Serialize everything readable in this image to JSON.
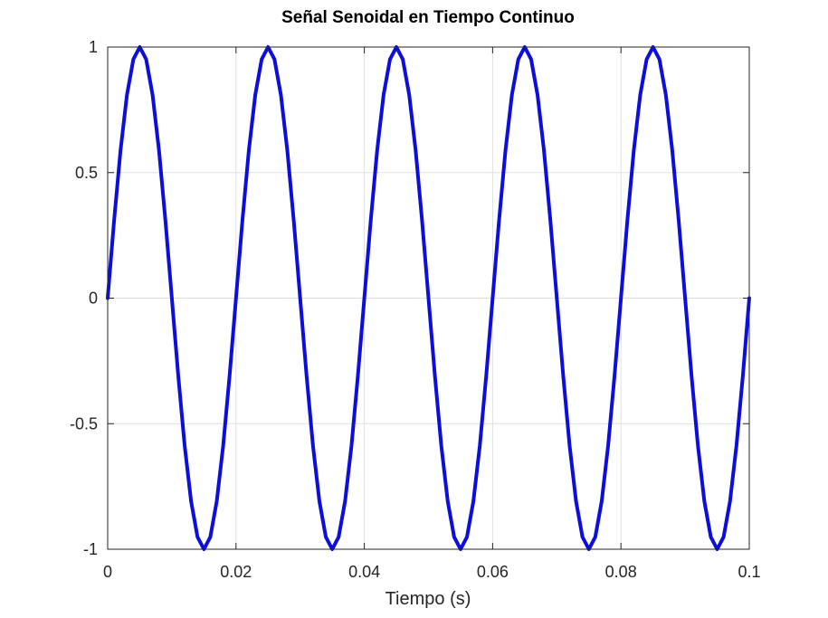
{
  "chart_data": {
    "type": "line",
    "title": "Señal Senoidal en Tiempo Continuo",
    "xlabel": "Tiempo (s)",
    "ylabel": "",
    "xlim": [
      0,
      0.1
    ],
    "ylim": [
      -1,
      1
    ],
    "x_ticks": [
      0,
      0.02,
      0.04,
      0.06,
      0.08,
      0.1
    ],
    "x_tick_labels": [
      "0",
      "0.02",
      "0.04",
      "0.06",
      "0.08",
      "0.1"
    ],
    "y_ticks": [
      -1,
      -0.5,
      0,
      0.5,
      1
    ],
    "y_tick_labels": [
      "-1",
      "-0.5",
      "0",
      "0.5",
      "1"
    ],
    "grid": true,
    "series": [
      {
        "color": "#0d0ddc",
        "x": [
          0,
          0.001,
          0.002,
          0.003,
          0.004,
          0.005,
          0.006,
          0.007,
          0.008,
          0.009,
          0.01,
          0.011,
          0.012,
          0.013,
          0.014,
          0.015,
          0.016,
          0.017,
          0.018,
          0.019,
          0.02,
          0.021,
          0.022,
          0.023,
          0.024,
          0.025,
          0.026,
          0.027,
          0.028,
          0.029,
          0.03,
          0.031,
          0.032,
          0.033,
          0.034,
          0.035,
          0.036,
          0.037,
          0.038,
          0.039,
          0.04,
          0.041,
          0.042,
          0.043,
          0.044,
          0.045,
          0.046,
          0.047,
          0.048,
          0.049,
          0.05,
          0.051,
          0.052,
          0.053,
          0.054,
          0.055,
          0.056,
          0.057,
          0.058,
          0.059,
          0.06,
          0.061,
          0.062,
          0.063,
          0.064,
          0.065,
          0.066,
          0.067,
          0.068,
          0.069,
          0.07,
          0.071,
          0.072,
          0.073,
          0.074,
          0.075,
          0.076,
          0.077,
          0.078,
          0.079,
          0.08,
          0.081,
          0.082,
          0.083,
          0.084,
          0.085,
          0.086,
          0.087,
          0.088,
          0.089,
          0.09,
          0.091,
          0.092,
          0.093,
          0.094,
          0.095,
          0.096,
          0.097,
          0.098,
          0.099,
          0.1
        ],
        "y": [
          0,
          0.309,
          0.588,
          0.809,
          0.951,
          1,
          0.951,
          0.809,
          0.588,
          0.309,
          0,
          -0.309,
          -0.588,
          -0.809,
          -0.951,
          -1,
          -0.951,
          -0.809,
          -0.588,
          -0.309,
          0,
          0.309,
          0.588,
          0.809,
          0.951,
          1,
          0.951,
          0.809,
          0.588,
          0.309,
          0,
          -0.309,
          -0.588,
          -0.809,
          -0.951,
          -1,
          -0.951,
          -0.809,
          -0.588,
          -0.309,
          0,
          0.309,
          0.588,
          0.809,
          0.951,
          1,
          0.951,
          0.809,
          0.588,
          0.309,
          0,
          -0.309,
          -0.588,
          -0.809,
          -0.951,
          -1,
          -0.951,
          -0.809,
          -0.588,
          -0.309,
          0,
          0.309,
          0.588,
          0.809,
          0.951,
          1,
          0.951,
          0.809,
          0.588,
          0.309,
          0,
          -0.309,
          -0.588,
          -0.809,
          -0.951,
          -1,
          -0.951,
          -0.809,
          -0.588,
          -0.309,
          0,
          0.309,
          0.588,
          0.809,
          0.951,
          1,
          0.951,
          0.809,
          0.588,
          0.309,
          0,
          -0.309,
          -0.588,
          -0.809,
          -0.951,
          -1,
          -0.951,
          -0.809,
          -0.588,
          -0.309,
          0
        ]
      }
    ]
  }
}
